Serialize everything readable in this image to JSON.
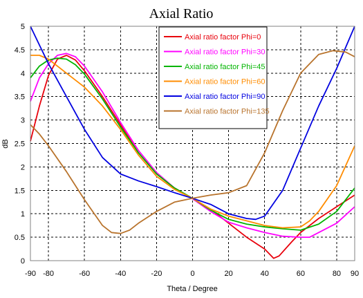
{
  "chart_data": {
    "type": "line",
    "title": "Axial Ratio",
    "xlabel": "Theta / Degree",
    "ylabel": "dB",
    "xlim": [
      -90,
      90
    ],
    "ylim": [
      0,
      5
    ],
    "grid": true,
    "grid_style": "dashed",
    "legend_position": "top-center",
    "x_ticks": [
      -90,
      -80,
      -60,
      -40,
      -20,
      0,
      20,
      40,
      60,
      80,
      90
    ],
    "y_ticks": [
      0,
      0.5,
      1,
      1.5,
      2,
      2.5,
      3,
      3.5,
      4,
      4.5,
      5
    ],
    "x_tick_labels": [
      "-90",
      "-80",
      "-60",
      "-40",
      "-20",
      "0",
      "20",
      "40",
      "60",
      "80",
      "90"
    ],
    "y_tick_labels": [
      "0",
      "0.5",
      "1",
      "1.5",
      "2",
      "2.5",
      "3",
      "3.5",
      "4",
      "4.5",
      "5"
    ],
    "series": [
      {
        "name": "Axial ratio factor Phi=0",
        "color": "#e8000b",
        "points": [
          [
            -90,
            2.55
          ],
          [
            -85,
            3.3
          ],
          [
            -80,
            3.95
          ],
          [
            -75,
            4.3
          ],
          [
            -70,
            4.38
          ],
          [
            -65,
            4.28
          ],
          [
            -60,
            4.05
          ],
          [
            -50,
            3.5
          ],
          [
            -40,
            2.9
          ],
          [
            -30,
            2.3
          ],
          [
            -20,
            1.85
          ],
          [
            -10,
            1.55
          ],
          [
            0,
            1.32
          ],
          [
            10,
            1.1
          ],
          [
            20,
            0.8
          ],
          [
            30,
            0.5
          ],
          [
            40,
            0.25
          ],
          [
            45,
            0.05
          ],
          [
            48,
            0.1
          ],
          [
            55,
            0.4
          ],
          [
            60,
            0.6
          ],
          [
            70,
            0.9
          ],
          [
            80,
            1.15
          ],
          [
            90,
            1.4
          ]
        ]
      },
      {
        "name": "Axial ratio factor Phi=30",
        "color": "#ff00ff",
        "points": [
          [
            -90,
            3.4
          ],
          [
            -85,
            3.9
          ],
          [
            -80,
            4.2
          ],
          [
            -75,
            4.38
          ],
          [
            -70,
            4.42
          ],
          [
            -65,
            4.35
          ],
          [
            -60,
            4.15
          ],
          [
            -50,
            3.6
          ],
          [
            -40,
            2.95
          ],
          [
            -30,
            2.35
          ],
          [
            -20,
            1.88
          ],
          [
            -10,
            1.55
          ],
          [
            0,
            1.32
          ],
          [
            10,
            1.05
          ],
          [
            20,
            0.82
          ],
          [
            30,
            0.7
          ],
          [
            40,
            0.6
          ],
          [
            50,
            0.52
          ],
          [
            60,
            0.5
          ],
          [
            65,
            0.5
          ],
          [
            70,
            0.6
          ],
          [
            80,
            0.8
          ],
          [
            90,
            1.15
          ]
        ]
      },
      {
        "name": "Axial ratio factor Phi=45",
        "color": "#00b400",
        "points": [
          [
            -90,
            3.9
          ],
          [
            -85,
            4.15
          ],
          [
            -80,
            4.28
          ],
          [
            -75,
            4.32
          ],
          [
            -70,
            4.3
          ],
          [
            -65,
            4.18
          ],
          [
            -60,
            3.98
          ],
          [
            -50,
            3.45
          ],
          [
            -40,
            2.85
          ],
          [
            -30,
            2.3
          ],
          [
            -20,
            1.85
          ],
          [
            -10,
            1.55
          ],
          [
            0,
            1.33
          ],
          [
            10,
            1.08
          ],
          [
            20,
            0.88
          ],
          [
            30,
            0.78
          ],
          [
            40,
            0.72
          ],
          [
            50,
            0.68
          ],
          [
            60,
            0.65
          ],
          [
            70,
            0.78
          ],
          [
            80,
            1.05
          ],
          [
            90,
            1.55
          ]
        ]
      },
      {
        "name": "Axial ratio factor Phi=60",
        "color": "#ff8c00",
        "points": [
          [
            -90,
            4.38
          ],
          [
            -85,
            4.38
          ],
          [
            -80,
            4.3
          ],
          [
            -70,
            4.0
          ],
          [
            -60,
            3.7
          ],
          [
            -50,
            3.3
          ],
          [
            -40,
            2.8
          ],
          [
            -30,
            2.25
          ],
          [
            -20,
            1.8
          ],
          [
            -10,
            1.52
          ],
          [
            0,
            1.33
          ],
          [
            10,
            1.1
          ],
          [
            20,
            0.95
          ],
          [
            30,
            0.85
          ],
          [
            40,
            0.75
          ],
          [
            50,
            0.7
          ],
          [
            60,
            0.72
          ],
          [
            65,
            0.85
          ],
          [
            70,
            1.05
          ],
          [
            80,
            1.6
          ],
          [
            90,
            2.45
          ]
        ]
      },
      {
        "name": "Axial ratio factor Phi=90",
        "color": "#0000e0",
        "points": [
          [
            -90,
            5.0
          ],
          [
            -85,
            4.6
          ],
          [
            -80,
            4.2
          ],
          [
            -70,
            3.5
          ],
          [
            -60,
            2.8
          ],
          [
            -50,
            2.2
          ],
          [
            -40,
            1.85
          ],
          [
            -30,
            1.7
          ],
          [
            -20,
            1.58
          ],
          [
            -10,
            1.45
          ],
          [
            0,
            1.33
          ],
          [
            10,
            1.2
          ],
          [
            20,
            1.0
          ],
          [
            30,
            0.9
          ],
          [
            35,
            0.88
          ],
          [
            40,
            0.95
          ],
          [
            50,
            1.5
          ],
          [
            60,
            2.4
          ],
          [
            70,
            3.3
          ],
          [
            80,
            4.1
          ],
          [
            90,
            5.0
          ]
        ]
      },
      {
        "name": "Axial ratio factor Phi=135",
        "color": "#b8732c",
        "points": [
          [
            -90,
            2.9
          ],
          [
            -85,
            2.7
          ],
          [
            -80,
            2.45
          ],
          [
            -70,
            1.9
          ],
          [
            -60,
            1.3
          ],
          [
            -50,
            0.75
          ],
          [
            -45,
            0.6
          ],
          [
            -40,
            0.58
          ],
          [
            -35,
            0.65
          ],
          [
            -30,
            0.8
          ],
          [
            -20,
            1.05
          ],
          [
            -10,
            1.25
          ],
          [
            0,
            1.33
          ],
          [
            10,
            1.4
          ],
          [
            20,
            1.45
          ],
          [
            30,
            1.6
          ],
          [
            40,
            2.3
          ],
          [
            50,
            3.2
          ],
          [
            60,
            4.0
          ],
          [
            70,
            4.4
          ],
          [
            78,
            4.48
          ],
          [
            85,
            4.45
          ],
          [
            90,
            4.35
          ]
        ]
      }
    ]
  }
}
